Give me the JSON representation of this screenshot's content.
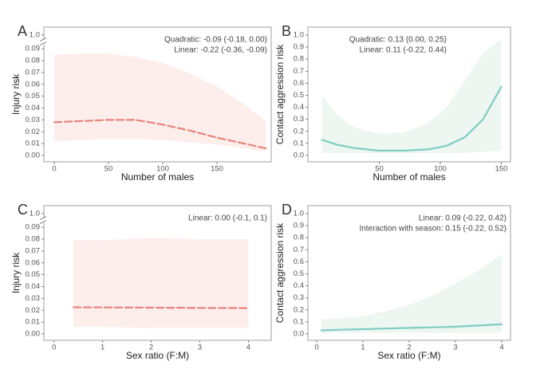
{
  "chart_data": [
    {
      "type": "line",
      "panel_label": "A",
      "xlabel": "Number of males",
      "ylabel": "Injury risk",
      "annotations": [
        "Quadratic: -0.09 (-0.18, 0.00)",
        "Linear: -0.22 (-0.36, -0.09)"
      ],
      "x": [
        0,
        25,
        50,
        75,
        100,
        125,
        150,
        175,
        195
      ],
      "series": [
        {
          "color": "#e8837b",
          "band_color": "#fdeeec",
          "dashed": true,
          "values": [
            0.028,
            0.029,
            0.03,
            0.03,
            0.026,
            0.021,
            0.015,
            0.01,
            0.006
          ],
          "upper": [
            0.085,
            0.086,
            0.086,
            0.083,
            0.078,
            0.069,
            0.058,
            0.043,
            0.029
          ],
          "lower": [
            0.012,
            0.013,
            0.014,
            0.014,
            0.013,
            0.011,
            0.009,
            0.006,
            0.003
          ]
        }
      ],
      "xlim": [
        -9.6,
        200
      ],
      "xticks": [
        0,
        50,
        100,
        150
      ],
      "ylim": [
        0,
        1
      ],
      "y_axis_break": true,
      "yticks": [
        {
          "value": 0,
          "label": "0.00"
        },
        {
          "value": 0.01,
          "label": "0.01"
        },
        {
          "value": 0.02,
          "label": "0.02"
        },
        {
          "value": 0.03,
          "label": "0.03"
        },
        {
          "value": 0.04,
          "label": "0.04"
        },
        {
          "value": 0.05,
          "label": "0.05"
        },
        {
          "value": 0.06,
          "label": "0.06"
        },
        {
          "value": 0.07,
          "label": "0.07"
        },
        {
          "value": 0.08,
          "label": "0.08"
        },
        {
          "value": 0.09,
          "label": "0.09"
        },
        {
          "value": 1,
          "label": "1.0"
        }
      ]
    },
    {
      "type": "line",
      "panel_label": "B",
      "xlabel": "Number of males",
      "ylabel": "Contact aggression risk",
      "annotations": [
        "Quadratic: 0.13 (0.00, 0.25)",
        "Linear: 0.11 (-0.22, 0.44)"
      ],
      "x": [
        3,
        15,
        30,
        50,
        70,
        90,
        105,
        120,
        135,
        150
      ],
      "series": [
        {
          "color": "#7ecdc4",
          "band_color": "#eef6f1",
          "dashed": false,
          "values": [
            0.13,
            0.09,
            0.06,
            0.04,
            0.04,
            0.05,
            0.08,
            0.15,
            0.3,
            0.57
          ],
          "upper": [
            0.5,
            0.34,
            0.23,
            0.18,
            0.19,
            0.27,
            0.4,
            0.62,
            0.85,
            0.97
          ],
          "lower": [
            0.02,
            0.02,
            0.02,
            0.02,
            0.02,
            0.02,
            0.02,
            0.02,
            0.03,
            0.04
          ]
        }
      ],
      "xlim": [
        -8.5,
        157.5
      ],
      "xticks": [
        50,
        100,
        150
      ],
      "ylim": [
        0,
        1
      ],
      "y_axis_break": false,
      "yticks": [
        {
          "value": 0,
          "label": "0.0"
        },
        0.1,
        0.2,
        0.3,
        0.4,
        0.5,
        0.6,
        0.7,
        0.8,
        0.9,
        {
          "value": 1,
          "label": "1.0"
        }
      ]
    },
    {
      "type": "line",
      "panel_label": "C",
      "xlabel": "Sex ratio (F:M)",
      "ylabel": "Injury risk",
      "annotations": [
        "Linear: 0.00 (-0.1, 0.1)"
      ],
      "x": [
        0.4,
        1,
        2,
        3,
        4
      ],
      "series": [
        {
          "color": "#e8837b",
          "band_color": "#fdeeec",
          "dashed": true,
          "values": [
            0.0225,
            0.0224,
            0.0222,
            0.022,
            0.0218
          ],
          "upper": [
            0.079,
            0.079,
            0.081,
            0.08,
            0.08
          ],
          "lower": [
            0.006,
            0.006,
            0.005,
            0.005,
            0.005
          ]
        }
      ],
      "xlim": [
        -0.21,
        4.47
      ],
      "xticks": [
        0,
        1,
        2,
        3,
        4
      ],
      "ylim": [
        0,
        1
      ],
      "y_axis_break": true,
      "yticks": [
        {
          "value": 0,
          "label": "0.00"
        },
        {
          "value": 0.01,
          "label": "0.01"
        },
        {
          "value": 0.02,
          "label": "0.02"
        },
        {
          "value": 0.03,
          "label": "0.03"
        },
        {
          "value": 0.04,
          "label": "0.04"
        },
        {
          "value": 0.05,
          "label": "0.05"
        },
        {
          "value": 0.06,
          "label": "0.06"
        },
        {
          "value": 0.07,
          "label": "0.07"
        },
        {
          "value": 0.08,
          "label": "0.08"
        },
        {
          "value": 0.09,
          "label": "0.09"
        },
        {
          "value": 1,
          "label": "1.0"
        }
      ]
    },
    {
      "type": "line",
      "panel_label": "D",
      "xlabel": "Sex ratio (F:M)",
      "ylabel": "Contact aggression risk",
      "annotations": [
        "Linear: 0.09 (-0.22, 0.42)",
        "Interaction with season: 0.15 (-0.22, 0.52)"
      ],
      "x": [
        0.1,
        0.5,
        1,
        1.5,
        2,
        2.5,
        3,
        3.5,
        4
      ],
      "series": [
        {
          "color": "#7ecdc4",
          "band_color": "#eef6f1",
          "dashed": false,
          "values": [
            0.03,
            0.035,
            0.04,
            0.045,
            0.05,
            0.055,
            0.06,
            0.07,
            0.08
          ],
          "upper": [
            0.12,
            0.13,
            0.15,
            0.19,
            0.24,
            0.32,
            0.42,
            0.53,
            0.66
          ],
          "lower": [
            0.01,
            0.01,
            0.01,
            0.01,
            0.01,
            0.01,
            0.01,
            0.01,
            0.01
          ]
        }
      ],
      "xlim": [
        -0.19,
        4.19
      ],
      "xticks": [
        0,
        1,
        2,
        3,
        4
      ],
      "ylim": [
        0,
        1
      ],
      "y_axis_break": false,
      "yticks": [
        {
          "value": 0,
          "label": "0.0"
        },
        0.1,
        0.2,
        0.3,
        0.4,
        0.5,
        0.6,
        0.7,
        0.8,
        0.9,
        {
          "value": 1,
          "label": "1.0"
        }
      ]
    }
  ]
}
